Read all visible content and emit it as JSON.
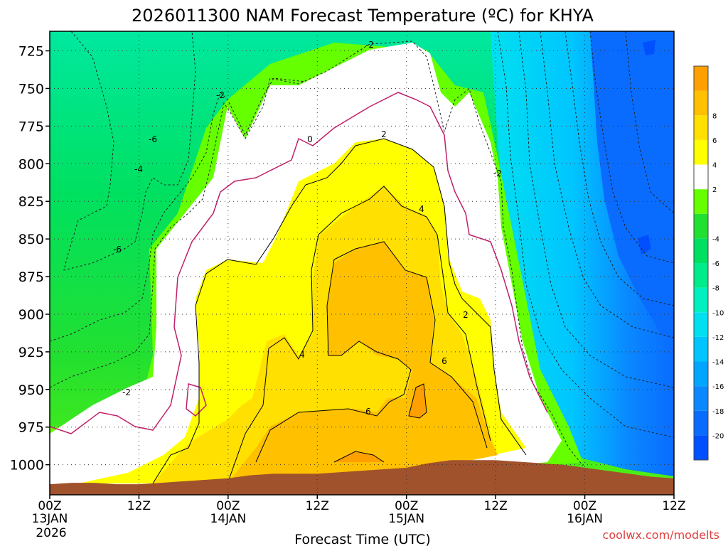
{
  "chart_data": {
    "type": "heatmap",
    "title": "2026011300 NAM Forecast Temperature (ºC) for KHYA",
    "xlabel": "Forecast Time (UTC)",
    "ylabel": "",
    "credit": "coolwx.com/modelts",
    "y_ticks": [
      "725",
      "750",
      "775",
      "800",
      "825",
      "850",
      "875",
      "900",
      "925",
      "950",
      "975",
      "1000"
    ],
    "y_values": [
      725,
      750,
      775,
      800,
      825,
      850,
      875,
      900,
      925,
      950,
      975,
      1000
    ],
    "ylim": [
      712,
      1020
    ],
    "x_hours": [
      0,
      12,
      24,
      36,
      48,
      60,
      72,
      84
    ],
    "x_tick_labels": [
      "00Z",
      "12Z",
      "00Z",
      "12Z",
      "00Z",
      "12Z",
      "00Z",
      "12Z"
    ],
    "x_date_labels": [
      "13JAN",
      "",
      "14JAN",
      "",
      "15JAN",
      "",
      "16JAN",
      ""
    ],
    "x_year_label": "2026",
    "xlim": [
      0,
      84
    ],
    "colorbar": {
      "levels": [
        -22,
        -20,
        -18,
        -16,
        -14,
        -12,
        -10,
        -8,
        -6,
        -4,
        -2,
        0,
        2,
        4,
        6,
        8,
        10
      ],
      "labels": [
        "-20",
        "-18",
        "-16",
        "-14",
        "-12",
        "-10",
        "-8",
        "-6",
        "-4",
        "",
        "2",
        "4",
        "6",
        "8"
      ],
      "colors": [
        "#0050ff",
        "#0a6cff",
        "#0a88ff",
        "#00a5ff",
        "#00c5ff",
        "#00e0f0",
        "#00f0c0",
        "#00eb8a",
        "#00e060",
        "#22e030",
        "#66ff00",
        "#ffffff",
        "#ffff00",
        "#ffe000",
        "#ffc000",
        "#ffa000"
      ]
    },
    "contour_labels": [
      "-2",
      "-2",
      "-2",
      "0",
      "2",
      "2",
      "4",
      "4",
      "6",
      "6",
      "-6",
      "-4",
      "-6",
      "-2"
    ],
    "surface_pressure": [
      [
        0,
        1013
      ],
      [
        3,
        1012
      ],
      [
        6,
        1012
      ],
      [
        9,
        1013
      ],
      [
        12,
        1013
      ],
      [
        15,
        1012
      ],
      [
        18,
        1011
      ],
      [
        21,
        1010
      ],
      [
        24,
        1009
      ],
      [
        27,
        1007
      ],
      [
        30,
        1006
      ],
      [
        33,
        1006
      ],
      [
        36,
        1006
      ],
      [
        39,
        1005
      ],
      [
        42,
        1004
      ],
      [
        45,
        1003
      ],
      [
        48,
        1002
      ],
      [
        51,
        999
      ],
      [
        54,
        997
      ],
      [
        57,
        997
      ],
      [
        60,
        997
      ],
      [
        63,
        998
      ],
      [
        66,
        999
      ],
      [
        69,
        1000
      ],
      [
        72,
        1002
      ],
      [
        75,
        1004
      ],
      [
        78,
        1006
      ],
      [
        81,
        1008
      ],
      [
        84,
        1009
      ]
    ]
  }
}
